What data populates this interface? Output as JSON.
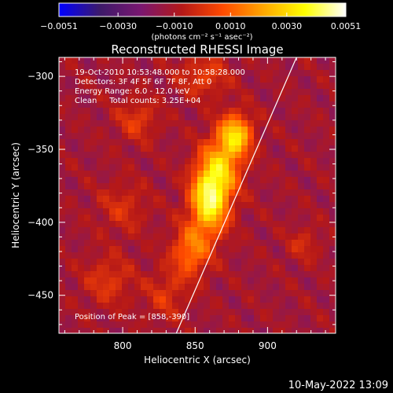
{
  "chart_data": {
    "type": "heatmap",
    "title": "Reconstructed RHESSI Image",
    "xlabel": "Heliocentric X (arcsec)",
    "ylabel": "Heliocentric Y (arcsec)",
    "xlim": [
      756,
      947
    ],
    "ylim": [
      -476,
      -287
    ],
    "x_ticks": [
      800,
      850,
      900
    ],
    "y_ticks": [
      -300,
      -350,
      -400,
      -450
    ],
    "colorbar": {
      "range": [
        -0.0051,
        0.0051
      ],
      "ticks": [
        "-0.0051",
        "-0.0030",
        "-0.0010",
        "0.0010",
        "0.0030",
        "0.0051"
      ],
      "tick_values": [
        -0.0051,
        -0.003,
        -0.001,
        0.001,
        0.003,
        0.0051
      ],
      "label": "(photons cm⁻² s⁻¹ asec⁻²)"
    },
    "info_lines": [
      "19-Oct-2010 10:53:48.000 to 10:58:28.000",
      "Detectors: 3F 4F 5F 6F 7F 8F, Att 0",
      "Energy Range: 6.0 - 12.0 keV",
      "Clean     Total counts: 3.25E+04"
    ],
    "peak_label": "Position of Peak = [858,-390]",
    "peak": [
      858,
      -390
    ],
    "source_blobs": [
      {
        "x": 860,
        "y": -385,
        "sx": 9,
        "sy": 16,
        "amp": 0.0051
      },
      {
        "x": 878,
        "y": -340,
        "sx": 8,
        "sy": 10,
        "amp": 0.004
      },
      {
        "x": 868,
        "y": -362,
        "sx": 10,
        "sy": 14,
        "amp": 0.003
      },
      {
        "x": 847,
        "y": -420,
        "sx": 9,
        "sy": 12,
        "amp": 0.0026
      },
      {
        "x": 856,
        "y": -300,
        "sx": 12,
        "sy": 10,
        "amp": 0.0015
      },
      {
        "x": 810,
        "y": -330,
        "sx": 10,
        "sy": 10,
        "amp": 0.0014
      },
      {
        "x": 800,
        "y": -390,
        "sx": 12,
        "sy": 12,
        "amp": 0.0011
      },
      {
        "x": 790,
        "y": -440,
        "sx": 12,
        "sy": 12,
        "amp": 0.0013
      },
      {
        "x": 830,
        "y": -450,
        "sx": 10,
        "sy": 12,
        "amp": 0.0012
      },
      {
        "x": 925,
        "y": -415,
        "sx": 8,
        "sy": 8,
        "amp": 0.001
      }
    ],
    "limb_line": [
      [
        837,
        -476
      ],
      [
        920,
        -287
      ]
    ],
    "colormap": [
      "#0000ff",
      "#3d1a6a",
      "#7a1770",
      "#b51818",
      "#ff4a00",
      "#ffa800",
      "#ffff00",
      "#ffffff"
    ]
  },
  "footer": {
    "date": "10-May-2022 13:09"
  }
}
